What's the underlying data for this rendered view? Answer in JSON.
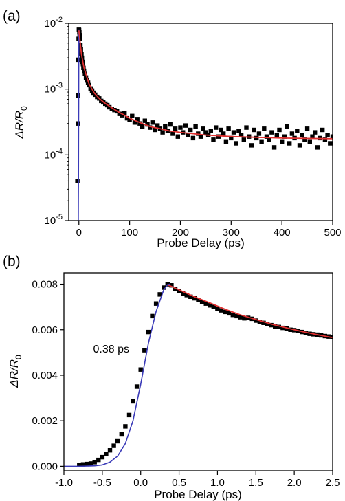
{
  "chart_data": [
    {
      "panel_label": "(a)",
      "type": "scatter",
      "xlabel": "Probe Delay (ps)",
      "ylabel": {
        "prefix": "ΔR/R",
        "subscript": "0"
      },
      "xlim": [
        -20,
        500
      ],
      "ylim": [
        1e-05,
        0.01
      ],
      "yscale": "log",
      "x_ticks": [
        0,
        100,
        200,
        300,
        400,
        500
      ],
      "x_tick_labels": [
        "0",
        "100",
        "200",
        "300",
        "400",
        "500"
      ],
      "y_ticks": [
        1e-05,
        0.0001,
        0.001,
        0.01
      ],
      "y_tick_labels": [
        {
          "base": "10",
          "exp": "-5"
        },
        {
          "base": "10",
          "exp": "-4"
        },
        {
          "base": "10",
          "exp": "-3"
        },
        {
          "base": "10",
          "exp": "-2"
        }
      ],
      "grid": false,
      "colors": {
        "data": "#000000",
        "fit": "#e03030",
        "rise": "#3a3ab8"
      },
      "series": [
        {
          "kind": "markers",
          "x": [
            -3,
            -2,
            -1.5,
            -1,
            -0.5,
            0,
            0.5,
            1,
            1.5,
            2,
            3,
            4,
            5,
            6,
            7,
            8,
            9,
            10,
            12,
            14,
            16,
            18,
            20,
            23,
            26,
            29,
            32,
            36,
            40,
            44,
            48,
            52,
            56,
            60,
            65,
            70,
            75,
            80,
            85,
            90,
            95,
            100,
            105,
            110,
            115,
            120,
            125,
            130,
            135,
            140,
            145,
            150,
            155,
            160,
            165,
            170,
            175,
            180,
            185,
            190,
            195,
            200,
            205,
            210,
            215,
            220,
            225,
            230,
            235,
            240,
            245,
            250,
            255,
            260,
            265,
            270,
            275,
            280,
            285,
            290,
            295,
            300,
            305,
            310,
            315,
            320,
            325,
            330,
            335,
            340,
            345,
            350,
            355,
            360,
            365,
            370,
            375,
            380,
            385,
            390,
            395,
            400,
            405,
            410,
            415,
            420,
            425,
            430,
            435,
            440,
            445,
            450,
            455,
            460,
            465,
            470,
            475,
            480,
            485,
            490,
            495,
            500
          ],
          "y": [
            4e-05,
            0.0003,
            0.0008,
            0.0028,
            0.0058,
            0.008,
            0.0079,
            0.0073,
            0.0066,
            0.0058,
            0.0047,
            0.004,
            0.0034,
            0.003,
            0.0026,
            0.0024,
            0.0021,
            0.0019,
            0.0017,
            0.0015,
            0.00135,
            0.00125,
            0.00115,
            0.00102,
            0.00095,
            0.00088,
            0.00082,
            0.00076,
            0.00072,
            0.00066,
            0.00063,
            0.0006,
            0.00057,
            0.00053,
            0.0005,
            0.00048,
            0.00046,
            0.00042,
            0.0004,
            0.00043,
            0.00036,
            0.00034,
            0.00039,
            0.00031,
            0.00035,
            0.0003,
            0.00027,
            0.00033,
            0.00029,
            0.00026,
            0.00031,
            0.00024,
            0.00028,
            0.00025,
            0.00022,
            0.00027,
            0.00023,
            0.00029,
            0.00021,
            0.00025,
            0.00019,
            0.00026,
            0.00022,
            0.00028,
            0.0002,
            0.00024,
            0.00018,
            0.00027,
            0.00021,
            0.00019,
            0.00025,
            0.00022,
            0.0002,
            0.00023,
            0.00017,
            0.00026,
            0.00019,
            0.00024,
            0.00021,
            0.00016,
            0.00025,
            0.00018,
            0.00022,
            0.00015,
            0.00023,
            0.0002,
            0.00017,
            0.00026,
            0.00019,
            0.00014,
            0.00024,
            0.00018,
            0.00021,
            0.00016,
            0.00025,
            0.00019,
            0.00017,
            0.00022,
            0.00013,
            0.0002,
            0.00024,
            0.00016,
            0.00019,
            0.00027,
            0.00015,
            0.00021,
            0.00018,
            0.00023,
            0.00014,
            0.0002,
            0.00017,
            0.00025,
            0.00016,
            0.00019,
            0.00022,
            0.00013,
            0.00018,
            0.00024,
            0.00017,
            0.0002,
            0.00015,
            0.00019
          ]
        },
        {
          "kind": "fit",
          "x": [
            0,
            5,
            10,
            20,
            30,
            40,
            50,
            60,
            70,
            80,
            90,
            100,
            120,
            140,
            160,
            180,
            200,
            250,
            300,
            350,
            400,
            450,
            500
          ],
          "y": [
            0.0078,
            0.0034,
            0.0021,
            0.0012,
            0.00088,
            0.00072,
            0.00062,
            0.00055,
            0.00049,
            0.00044,
            0.0004,
            0.00036,
            0.00031,
            0.00027,
            0.00025,
            0.00023,
            0.00022,
            0.0002,
            0.00019,
            0.000185,
            0.00018,
            0.000178,
            0.000176
          ]
        },
        {
          "kind": "rise",
          "x": [
            -1.2,
            -1,
            -0.8,
            -0.6,
            -0.4,
            -0.2,
            0,
            0.2,
            0.5
          ],
          "y": [
            1e-05,
            2e-05,
            5e-05,
            0.00015,
            0.0006,
            0.0022,
            0.0052,
            0.0075,
            0.0081
          ]
        }
      ]
    },
    {
      "panel_label": "(b)",
      "type": "scatter",
      "xlabel": "Probe Delay (ps)",
      "ylabel": {
        "prefix": "ΔR/R",
        "subscript": "0"
      },
      "xlim": [
        -1.0,
        2.5
      ],
      "ylim": [
        -0.0002,
        0.0085
      ],
      "x_ticks": [
        -1.0,
        -0.5,
        0.0,
        0.5,
        1.0,
        1.5,
        2.0,
        2.5
      ],
      "x_tick_labels": [
        "-1.0",
        "-0.5",
        "0.0",
        "0.5",
        "1.0",
        "1.5",
        "2.0",
        "2.5"
      ],
      "y_ticks": [
        0.0,
        0.002,
        0.004,
        0.006,
        0.008
      ],
      "y_tick_labels": [
        "0.000",
        "0.002",
        "0.004",
        "0.006",
        "0.008"
      ],
      "grid": false,
      "annotation": {
        "text": "0.38 ps",
        "x": -0.62,
        "y": 0.005
      },
      "colors": {
        "data": "#000000",
        "fit": "#e03030",
        "rise": "#3a3ab8"
      },
      "series": [
        {
          "kind": "markers",
          "x": [
            -0.8,
            -0.75,
            -0.7,
            -0.65,
            -0.6,
            -0.55,
            -0.5,
            -0.45,
            -0.4,
            -0.35,
            -0.3,
            -0.25,
            -0.2,
            -0.15,
            -0.1,
            -0.05,
            0.0,
            0.05,
            0.1,
            0.15,
            0.2,
            0.25,
            0.3,
            0.35,
            0.4,
            0.45,
            0.5,
            0.55,
            0.6,
            0.65,
            0.7,
            0.75,
            0.8,
            0.85,
            0.9,
            0.95,
            1.0,
            1.05,
            1.1,
            1.15,
            1.2,
            1.25,
            1.3,
            1.35,
            1.4,
            1.45,
            1.5,
            1.55,
            1.6,
            1.65,
            1.7,
            1.75,
            1.8,
            1.85,
            1.9,
            1.95,
            2.0,
            2.05,
            2.1,
            2.15,
            2.2,
            2.25,
            2.3,
            2.35,
            2.4,
            2.45,
            2.5
          ],
          "y": [
            5e-05,
            8e-05,
            0.0001,
            0.00012,
            0.00018,
            0.00028,
            0.0004,
            0.00055,
            0.0007,
            0.0009,
            0.0011,
            0.0014,
            0.00175,
            0.00225,
            0.00285,
            0.0035,
            0.00425,
            0.0051,
            0.0059,
            0.0066,
            0.00715,
            0.00755,
            0.00785,
            0.008,
            0.00795,
            0.0078,
            0.0077,
            0.0076,
            0.00752,
            0.00745,
            0.00738,
            0.0073,
            0.00722,
            0.00715,
            0.00707,
            0.007,
            0.00692,
            0.00685,
            0.00678,
            0.00672,
            0.00665,
            0.0066,
            0.00655,
            0.0065,
            0.00652,
            0.00648,
            0.0064,
            0.00635,
            0.0063,
            0.00625,
            0.0062,
            0.00615,
            0.00612,
            0.00608,
            0.00605,
            0.006,
            0.00598,
            0.00594,
            0.0059,
            0.00586,
            0.00582,
            0.0058,
            0.00578,
            0.00575,
            0.00572,
            0.0057,
            0.00568
          ]
        },
        {
          "kind": "fit",
          "x": [
            0.35,
            0.5,
            0.7,
            0.9,
            1.1,
            1.3,
            1.5,
            1.7,
            1.9,
            2.1,
            2.3,
            2.5
          ],
          "y": [
            0.00798,
            0.00775,
            0.00745,
            0.00718,
            0.0069,
            0.00665,
            0.00645,
            0.00625,
            0.00608,
            0.00592,
            0.00578,
            0.00565
          ]
        },
        {
          "kind": "rise",
          "x": [
            -1.0,
            -0.8,
            -0.6,
            -0.5,
            -0.4,
            -0.3,
            -0.2,
            -0.1,
            0.0,
            0.1,
            0.2,
            0.3,
            0.35,
            0.38
          ],
          "y": [
            0.0,
            0.0,
            2e-05,
            6e-05,
            0.00018,
            0.00045,
            0.001,
            0.002,
            0.0036,
            0.0054,
            0.0068,
            0.00775,
            0.00798,
            0.008
          ]
        }
      ]
    }
  ]
}
